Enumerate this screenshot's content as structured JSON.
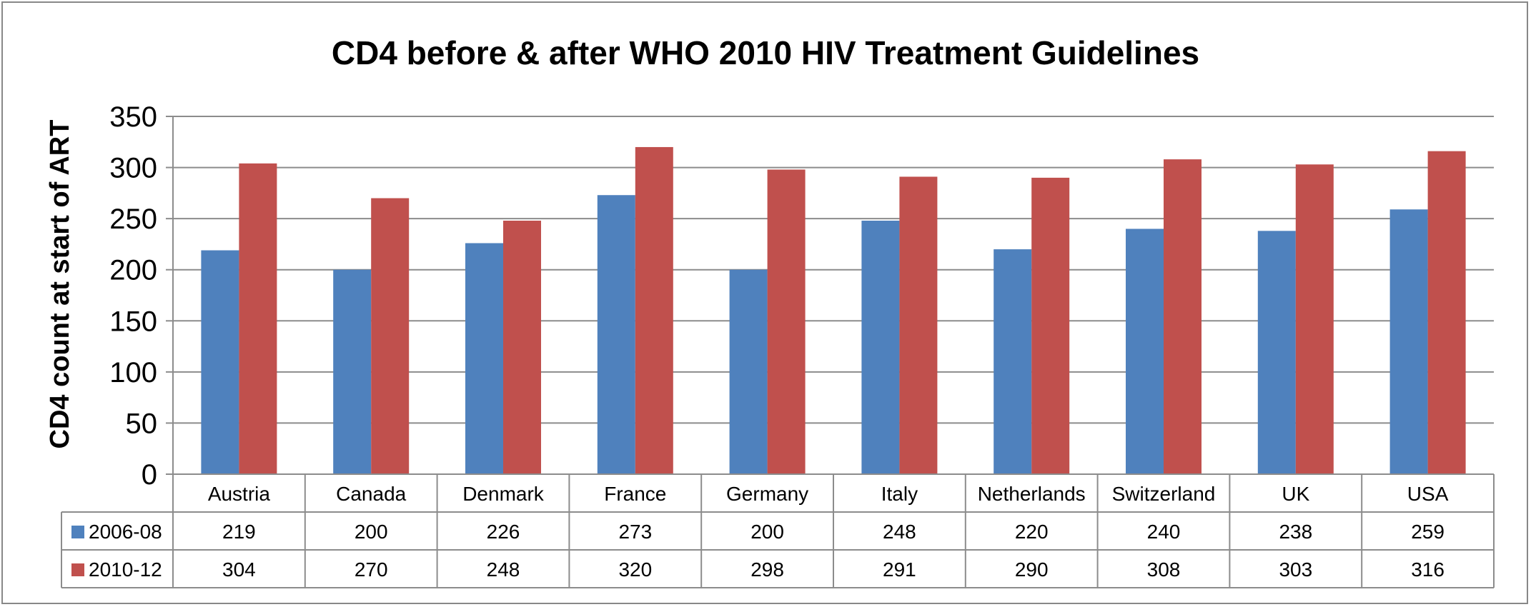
{
  "chart_data": {
    "type": "bar",
    "title": "CD4 before & after WHO 2010 HIV Treatment Guidelines",
    "xlabel": "",
    "ylabel": "CD4 count at start of ART",
    "ylim": [
      0,
      350
    ],
    "yticks": [
      0,
      50,
      100,
      150,
      200,
      250,
      300,
      350
    ],
    "grid": true,
    "legend": "data-table",
    "categories": [
      "Austria",
      "Canada",
      "Denmark",
      "France",
      "Germany",
      "Italy",
      "Netherlands",
      "Switzerland",
      "UK",
      "USA"
    ],
    "series": [
      {
        "name": "2006-08",
        "color": "#4f81bd",
        "values": [
          219,
          200,
          226,
          273,
          200,
          248,
          220,
          240,
          238,
          259
        ]
      },
      {
        "name": "2010-12",
        "color": "#c0504d",
        "values": [
          304,
          270,
          248,
          320,
          298,
          291,
          290,
          308,
          303,
          316
        ]
      }
    ]
  }
}
